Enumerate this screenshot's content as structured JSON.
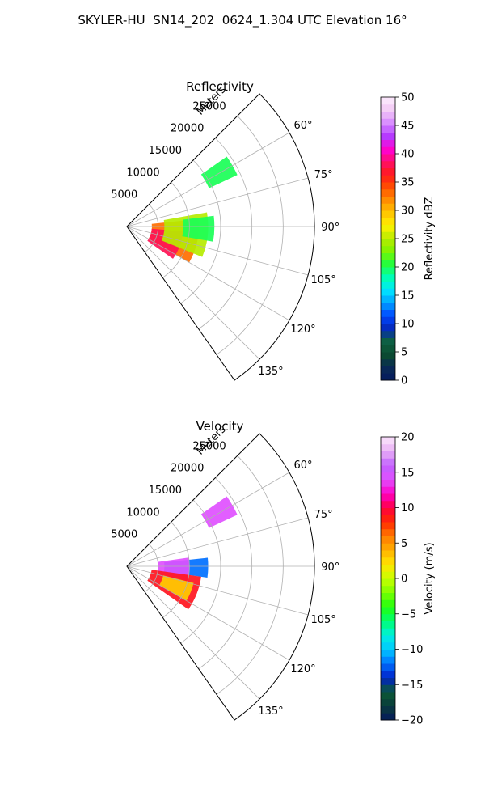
{
  "figure": {
    "title": "SKYLER-HU  SN14_202  0624_1.304 UTC Elevation 16°"
  },
  "colors": {
    "reflectivity_colormap": [
      "#051a5e",
      "#0a2a55",
      "#0b4b2f",
      "#0d6041",
      "#0628b8",
      "#0045ff",
      "#009dff",
      "#00e6ff",
      "#00ffb4",
      "#20ff40",
      "#7df500",
      "#b6ec00",
      "#fff200",
      "#ffc600",
      "#ff8f00",
      "#ff5000",
      "#ff1a1a",
      "#ff0f6a",
      "#ff00d6",
      "#b43cff",
      "#d88cff",
      "#f2c8f5",
      "#fdeefd"
    ],
    "velocity_colormap": [
      "#051a5e",
      "#0a3b3b",
      "#0b5a35",
      "#0020c8",
      "#0070ff",
      "#00c8ff",
      "#00f0e0",
      "#00ff70",
      "#20ff10",
      "#7cff00",
      "#c8ff00",
      "#ffe600",
      "#ffb000",
      "#ff7a00",
      "#ff2a00",
      "#ff0040",
      "#ff00c8",
      "#e050ff",
      "#c060ff",
      "#e9b0f5",
      "#fbe6fb"
    ]
  },
  "chart_data": [
    {
      "type": "heatmap",
      "projection": "polar sector (PPI)",
      "title": "Reflectivity",
      "radial_label": "Meters",
      "range_ticks": [
        5000,
        10000,
        15000,
        20000,
        25000
      ],
      "range_max": 30000,
      "azimuth_range": [
        45,
        145
      ],
      "azimuth_ticks": [
        "60°",
        "75°",
        "90°",
        "105°",
        "120°",
        "135°"
      ],
      "grid": true,
      "colorbar": {
        "label": "Reflectivity dBZ",
        "min": 0,
        "max": 50,
        "ticks": [
          "0",
          "5",
          "10",
          "15",
          "20",
          "25",
          "30",
          "35",
          "40",
          "45",
          "50"
        ]
      },
      "echo_regions": [
        {
          "az_start": 84,
          "az_end": 120,
          "r_start": 4000,
          "r_end": 11500,
          "value": 33
        },
        {
          "az_start": 95,
          "az_end": 125,
          "r_start": 4000,
          "r_end": 9000,
          "value": 38
        },
        {
          "az_start": 80,
          "az_end": 112,
          "r_start": 6000,
          "r_end": 13000,
          "value": 25
        },
        {
          "az_start": 83,
          "az_end": 100,
          "r_start": 9000,
          "r_end": 14000,
          "value": 20
        },
        {
          "az_start": 55,
          "az_end": 65,
          "r_start": 14500,
          "r_end": 19500,
          "value": 20
        }
      ]
    },
    {
      "type": "heatmap",
      "projection": "polar sector (PPI)",
      "title": "Velocity",
      "radial_label": "Meters",
      "range_ticks": [
        5000,
        10000,
        15000,
        20000,
        25000
      ],
      "range_max": 30000,
      "azimuth_range": [
        45,
        145
      ],
      "azimuth_ticks": [
        "60°",
        "75°",
        "90°",
        "105°",
        "120°",
        "135°"
      ],
      "grid": true,
      "colorbar": {
        "label": "Velocity (m/s)",
        "min": -20,
        "max": 20,
        "ticks": [
          "−20",
          "−15",
          "−10",
          "−5",
          "0",
          "5",
          "10",
          "15",
          "20"
        ]
      },
      "echo_regions": [
        {
          "az_start": 84,
          "az_end": 98,
          "r_start": 6000,
          "r_end": 13000,
          "value": -12
        },
        {
          "az_start": 82,
          "az_end": 105,
          "r_start": 5000,
          "r_end": 10000,
          "value": 14
        },
        {
          "az_start": 98,
          "az_end": 125,
          "r_start": 4000,
          "r_end": 12000,
          "value": 9
        },
        {
          "az_start": 104,
          "az_end": 120,
          "r_start": 6000,
          "r_end": 11000,
          "value": 3
        },
        {
          "az_start": 55,
          "az_end": 65,
          "r_start": 14500,
          "r_end": 19500,
          "value": 14
        }
      ]
    }
  ]
}
